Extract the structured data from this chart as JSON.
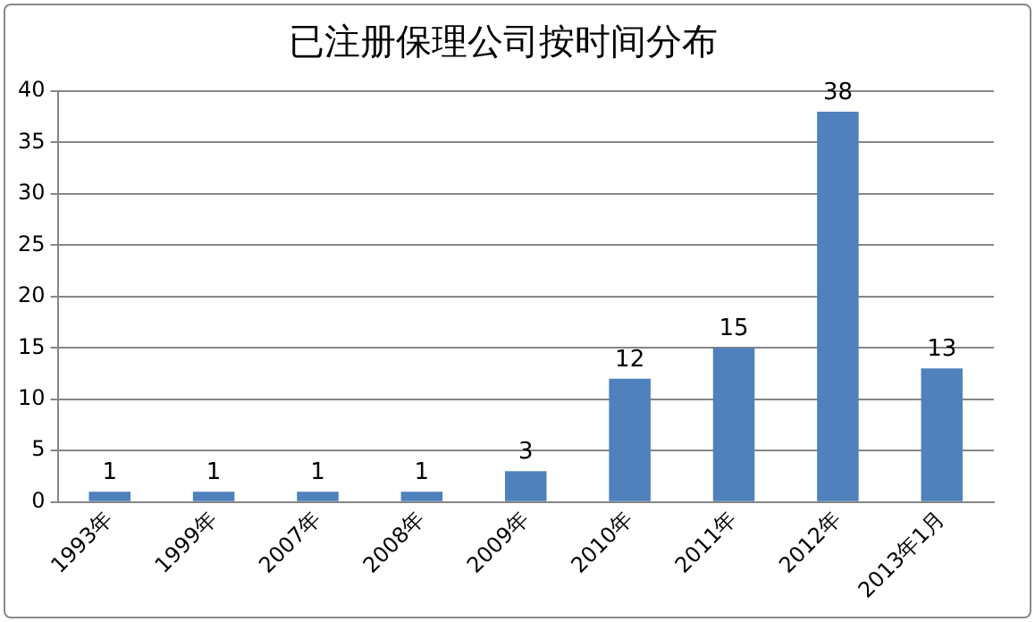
{
  "chart_data": {
    "type": "bar",
    "title": "已注册保理公司按时间分布",
    "categories": [
      "1993年",
      "1999年",
      "2007年",
      "2008年",
      "2009年",
      "2010年",
      "2011年",
      "2012年",
      "2013年1月"
    ],
    "values": [
      1,
      1,
      1,
      1,
      3,
      12,
      15,
      38,
      13
    ],
    "color": "#4f81bd",
    "ylim": [
      0,
      40
    ],
    "yticks": [
      0,
      5,
      10,
      15,
      20,
      25,
      30,
      35,
      40
    ],
    "grid": "y",
    "data_labels": true
  }
}
